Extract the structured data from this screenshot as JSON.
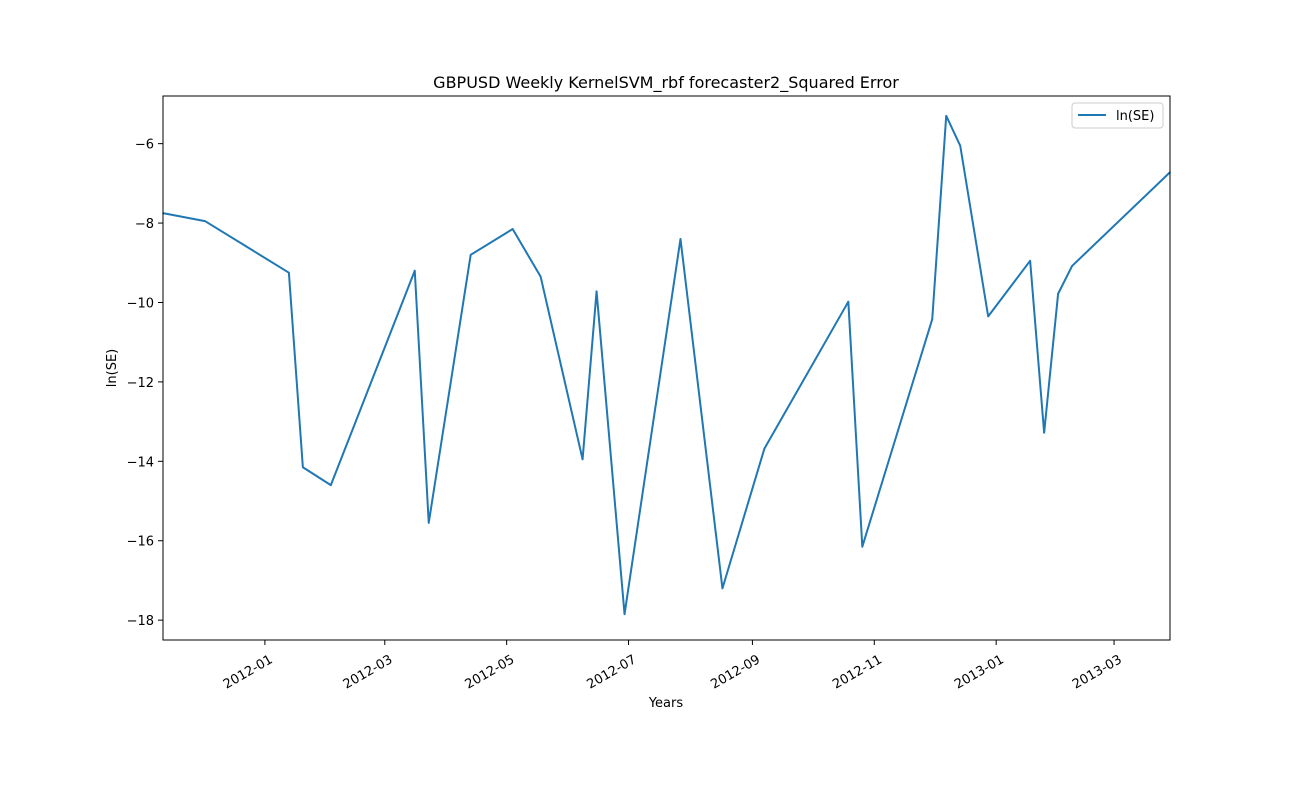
{
  "chart_data": {
    "type": "line",
    "title": "GBPUSD Weekly KernelSVM_rbf forecaster2_Squared Error",
    "xlabel": "Years",
    "ylabel": "ln(SE)",
    "x_type": "date",
    "xlim": [
      "2011-11-11",
      "2013-03-29"
    ],
    "ylim": [
      -18.5,
      -4.8
    ],
    "x_ticks": [
      "2012-01-01",
      "2012-03-01",
      "2012-05-01",
      "2012-07-01",
      "2012-09-01",
      "2012-11-01",
      "2013-01-01",
      "2013-03-01"
    ],
    "x_tick_labels": [
      "2012-01",
      "2012-03",
      "2012-05",
      "2012-07",
      "2012-09",
      "2012-11",
      "2013-01",
      "2013-03"
    ],
    "y_ticks": [
      -18,
      -16,
      -14,
      -12,
      -10,
      -8,
      -6
    ],
    "y_tick_labels": [
      "−18",
      "−16",
      "−14",
      "−12",
      "−10",
      "−8",
      "−6"
    ],
    "grid": false,
    "legend_position": "top-right",
    "series": [
      {
        "name": "ln(SE)",
        "color": "#1f77b4",
        "x": [
          "2011-11-11",
          "2011-12-02",
          "2012-01-13",
          "2012-01-20",
          "2012-02-03",
          "2012-03-16",
          "2012-03-23",
          "2012-04-13",
          "2012-05-04",
          "2012-05-18",
          "2012-06-08",
          "2012-06-15",
          "2012-06-29",
          "2012-07-27",
          "2012-08-17",
          "2012-09-07",
          "2012-10-19",
          "2012-10-26",
          "2012-11-30",
          "2012-12-07",
          "2012-12-14",
          "2012-12-28",
          "2013-01-18",
          "2013-01-25",
          "2013-02-01",
          "2013-02-08",
          "2013-03-29"
        ],
        "values": [
          -7.75,
          -7.95,
          -9.25,
          -14.15,
          -14.6,
          -9.2,
          -15.55,
          -8.8,
          -8.15,
          -9.35,
          -13.95,
          -9.72,
          -17.85,
          -8.4,
          -17.2,
          -13.68,
          -9.98,
          -16.15,
          -10.42,
          -5.3,
          -6.05,
          -10.35,
          -8.95,
          -13.28,
          -9.78,
          -9.08,
          -6.72
        ]
      }
    ]
  }
}
